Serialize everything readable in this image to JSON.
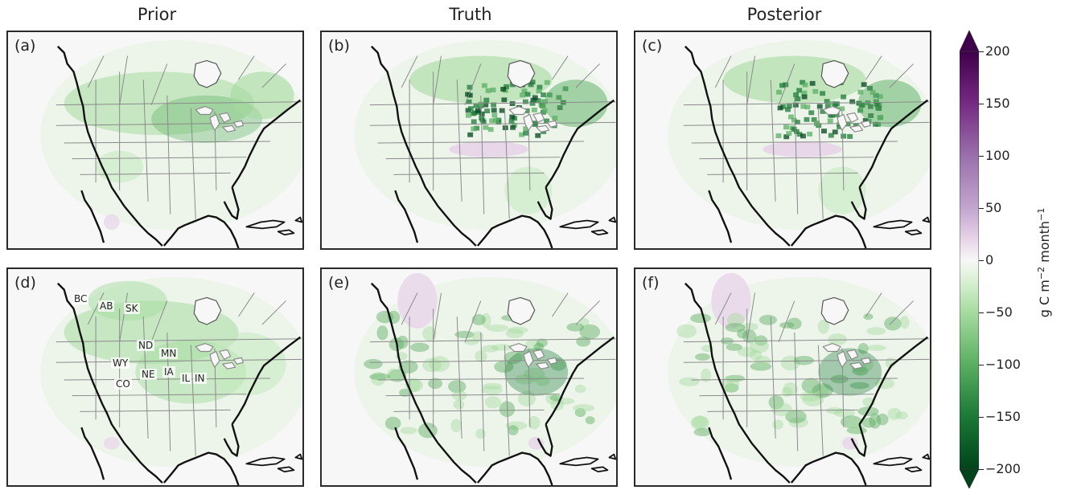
{
  "column_titles": [
    "Prior",
    "Truth",
    "Posterior"
  ],
  "panels": [
    {
      "id": "a",
      "label": "(a)"
    },
    {
      "id": "b",
      "label": "(b)"
    },
    {
      "id": "c",
      "label": "(c)"
    },
    {
      "id": "d",
      "label": "(d)"
    },
    {
      "id": "e",
      "label": "(e)"
    },
    {
      "id": "f",
      "label": "(f)"
    }
  ],
  "state_labels": [
    "BC",
    "AB",
    "SK",
    "ND",
    "MN",
    "WY",
    "NE",
    "IA",
    "IL",
    "IN",
    "CO"
  ],
  "colorbar": {
    "ticks": [
      "200",
      "150",
      "100",
      "50",
      "0",
      "−50",
      "−100",
      "−150",
      "−200"
    ],
    "label_main": "g C m",
    "label_exp1": "−2",
    "label_mid": " month",
    "label_exp2": "−1",
    "vmin": -200,
    "vmax": 200,
    "extend": "both",
    "colormap": "PRGn",
    "color_max": "#40004b",
    "color_zero": "#f7f7f7",
    "color_min": "#00441b"
  }
}
